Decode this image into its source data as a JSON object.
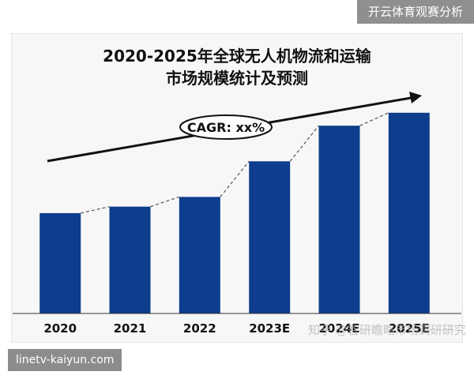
{
  "watermarks": {
    "top": "开云体育观赛分析",
    "bottom": "linetv-kaiyun.com",
    "overlay": "知乎 @智研瞻略市场调研研究"
  },
  "annotation": {
    "cagr_label": "CAGR: xx%"
  },
  "colors": {
    "bar": "#0d3d8c",
    "trend_arrow": "#111111",
    "connector": "#555555"
  },
  "chart_data": {
    "type": "bar",
    "title_line1": "2020-2025年全球无人机物流和运输",
    "title_line2": "市场规模统计及预测",
    "categories": [
      "2020",
      "2021",
      "2022",
      "2023E",
      "2024E",
      "2025E"
    ],
    "values": [
      31,
      33,
      36,
      47,
      58,
      62
    ],
    "ylim": [
      0,
      70
    ],
    "grid": false,
    "legend": "none",
    "xlabel": "",
    "ylabel": ""
  }
}
